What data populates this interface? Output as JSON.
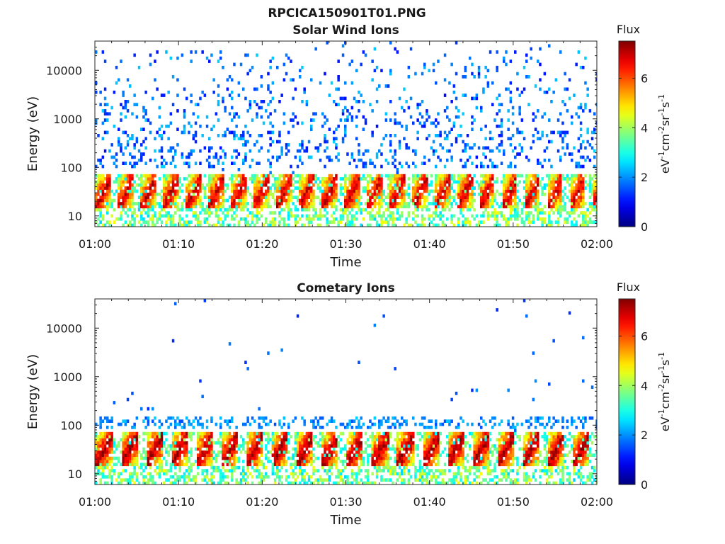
{
  "figure": {
    "filename_title": "RPCICA150901T01.PNG"
  },
  "chart_data": [
    {
      "type": "heatmap",
      "title": "Solar Wind Ions",
      "xlabel": "Time",
      "ylabel": "Energy (eV)",
      "x_range": [
        "01:00",
        "02:00"
      ],
      "x_ticks": [
        "01:00",
        "01:10",
        "01:20",
        "01:30",
        "01:40",
        "01:50",
        "02:00"
      ],
      "y_scale": "log",
      "y_range": [
        6,
        40000
      ],
      "y_ticks": [
        10,
        100,
        1000,
        10000
      ],
      "y_tick_labels": [
        "10",
        "100",
        "1000",
        "10000"
      ],
      "colorbar": {
        "label": "Flux",
        "unit_label": "eV-1cm-2sr-1s-1",
        "range": [
          0,
          7.5
        ],
        "ticks": [
          0,
          2,
          4,
          6
        ],
        "tick_labels": [
          "0",
          "2",
          "4",
          "6"
        ]
      },
      "features": {
        "sweep_period_min": 2.7,
        "peak_band_eV": [
          15,
          60
        ],
        "peak_flux": 7,
        "diffuse_band_eV": [
          100,
          30000
        ],
        "diffuse_flux": [
          1.0,
          2.5
        ]
      }
    },
    {
      "type": "heatmap",
      "title": "Cometary Ions",
      "xlabel": "Time",
      "ylabel": "Energy (eV)",
      "x_range": [
        "01:00",
        "02:00"
      ],
      "x_ticks": [
        "01:00",
        "01:10",
        "01:20",
        "01:30",
        "01:40",
        "01:50",
        "02:00"
      ],
      "y_scale": "log",
      "y_range": [
        6,
        40000
      ],
      "y_ticks": [
        10,
        100,
        1000,
        10000
      ],
      "y_tick_labels": [
        "10",
        "100",
        "1000",
        "10000"
      ],
      "colorbar": {
        "label": "Flux",
        "unit_label": "eV-1cm-2sr-1s-1",
        "range": [
          0,
          7.5
        ],
        "ticks": [
          0,
          2,
          4,
          6
        ],
        "tick_labels": [
          "0",
          "2",
          "4",
          "6"
        ]
      },
      "features": {
        "sweep_period_min": 3.0,
        "peak_band_eV": [
          15,
          60
        ],
        "peak_flux": 7.3,
        "diffuse_band_eV": [
          80,
          150
        ],
        "diffuse_flux": [
          1.5,
          2.5
        ]
      }
    }
  ],
  "colors": {
    "axis": "#262626",
    "colormap": [
      "#00008f",
      "#0000ff",
      "#00ffff",
      "#ffff00",
      "#ff0000",
      "#800000"
    ]
  }
}
